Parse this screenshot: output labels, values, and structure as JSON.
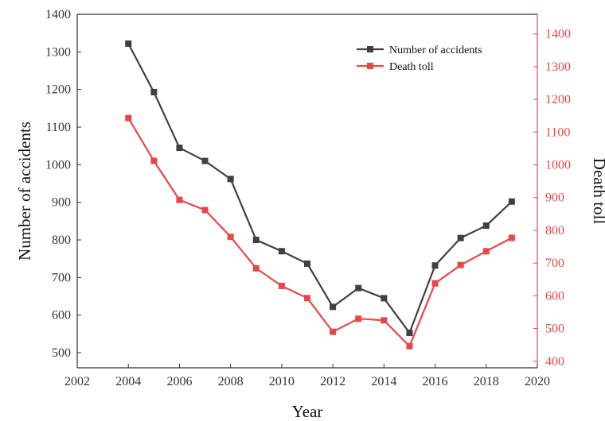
{
  "chart_data": {
    "type": "line",
    "x": [
      2004,
      2005,
      2006,
      2007,
      2008,
      2009,
      2010,
      2011,
      2012,
      2013,
      2014,
      2015,
      2016,
      2017,
      2018,
      2019
    ],
    "series": [
      {
        "name": "Number of accidents",
        "axis": "left",
        "color": "#404040",
        "marker": "square",
        "values": [
          1322,
          1193,
          1045,
          1010,
          962,
          800,
          770,
          737,
          622,
          672,
          645,
          553,
          732,
          805,
          838,
          902
        ]
      },
      {
        "name": "Death toll",
        "axis": "right",
        "color": "#e8474a",
        "marker": "square",
        "values": [
          1143,
          1012,
          893,
          862,
          780,
          684,
          630,
          593,
          490,
          530,
          525,
          446,
          638,
          694,
          736,
          777
        ]
      }
    ],
    "xlabel": "Year",
    "ylabel": "Number of accidents",
    "y2label": "Death toll",
    "xlim": [
      2002,
      2020
    ],
    "ylim": [
      460,
      1400
    ],
    "y2lim": [
      380,
      1460
    ],
    "xticks": [
      "2002",
      "2004",
      "2006",
      "2008",
      "2010",
      "2012",
      "2014",
      "2016",
      "2018",
      "2020"
    ],
    "yticks": [
      "500",
      "600",
      "700",
      "800",
      "900",
      "1000",
      "1100",
      "1200",
      "1300",
      "1400"
    ],
    "y2ticks": [
      "400",
      "500",
      "600",
      "700",
      "800",
      "900",
      "1000",
      "1100",
      "1200",
      "1300",
      "1400"
    ],
    "grid": false,
    "legend_position": "top-right",
    "left_axis_color": "#333333",
    "right_axis_color": "#e8474a"
  }
}
